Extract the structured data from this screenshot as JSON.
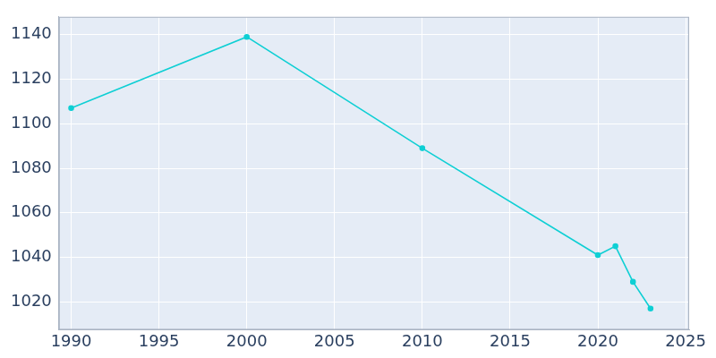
{
  "chart_data": {
    "type": "line",
    "x": [
      1990,
      2000,
      2010,
      2020,
      2021,
      2022,
      2023
    ],
    "values": [
      1107,
      1139,
      1089,
      1041,
      1045,
      1029,
      1017
    ],
    "color": "#0fcfd4",
    "marker": "circle",
    "xlim": [
      1989.3,
      2025.2
    ],
    "xticks": [
      1990,
      1995,
      2000,
      2005,
      2010,
      2015,
      2020,
      2025
    ],
    "ylim": [
      1007.5,
      1148
    ],
    "yticks": [
      1020,
      1040,
      1060,
      1080,
      1100,
      1120,
      1140
    ],
    "grid": true
  }
}
